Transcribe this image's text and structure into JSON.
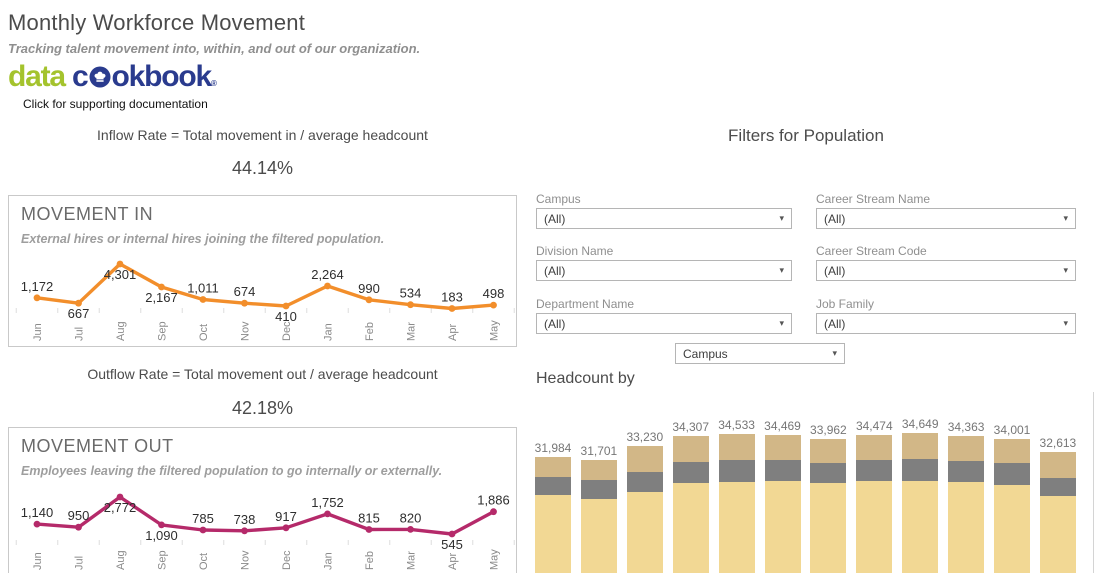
{
  "header": {
    "title": "Monthly Workforce Movement",
    "subtitle": "Tracking talent movement into, within, and out of our organization.",
    "logo": {
      "part1": "data",
      "part2_pre": "c",
      "part2_post": "okbook",
      "registered": "®",
      "caption": "Click for supporting documentation",
      "green": "#a4c32d",
      "blue": "#2a3b8e"
    }
  },
  "inflow": {
    "formula": "Inflow Rate = Total movement in / average headcount",
    "value": "44.14%"
  },
  "outflow": {
    "formula": "Outflow Rate = Total movement out / average headcount",
    "value": "42.18%"
  },
  "filters": {
    "title": "Filters for Population",
    "items": [
      {
        "label": "Campus",
        "value": "(All)"
      },
      {
        "label": "Career Stream Name",
        "value": "(All)"
      },
      {
        "label": "Division Name",
        "value": "(All)"
      },
      {
        "label": "Career Stream Code",
        "value": "(All)"
      },
      {
        "label": "Department Name",
        "value": "(All)"
      },
      {
        "label": "Job Family",
        "value": "(All)"
      }
    ],
    "parameter": {
      "value": "Campus"
    },
    "dropdown_arrow": "▾"
  },
  "headcount": {
    "title": "Headcount by"
  },
  "chart_data": [
    {
      "type": "line",
      "id": "movement_in",
      "title": "MOVEMENT IN",
      "subtitle": "External hires or internal hires joining the filtered population.",
      "categories": [
        "Jun",
        "Jul",
        "Aug",
        "Sep",
        "Oct",
        "Nov",
        "Dec",
        "Jan",
        "Feb",
        "Mar",
        "Apr",
        "May"
      ],
      "values": [
        1172,
        667,
        4301,
        2167,
        1011,
        674,
        410,
        2264,
        990,
        534,
        183,
        498
      ],
      "labels": [
        "1,172",
        "667",
        "4,301",
        "2,167",
        "1,011",
        "674",
        "410",
        "2,264",
        "990",
        "534",
        "183",
        "498"
      ],
      "color": "#f28e2b",
      "label_below": [
        1,
        2,
        3,
        6
      ],
      "legend": "none",
      "grid": false
    },
    {
      "type": "line",
      "id": "movement_out",
      "title": "MOVEMENT OUT",
      "subtitle": "Employees leaving the filtered population to go internally or externally.",
      "categories": [
        "Jun",
        "Jul",
        "Aug",
        "Sep",
        "Oct",
        "Nov",
        "Dec",
        "Jan",
        "Feb",
        "Mar",
        "Apr",
        "May"
      ],
      "values": [
        1140,
        950,
        2772,
        1090,
        785,
        738,
        917,
        1752,
        815,
        820,
        545,
        1886
      ],
      "labels": [
        "1,140",
        "950",
        "2,772",
        "1,090",
        "785",
        "738",
        "917",
        "1,752",
        "815",
        "820",
        "545",
        "1,886"
      ],
      "color": "#b52a6a",
      "label_below": [
        2,
        3,
        10
      ],
      "legend": "none",
      "grid": false
    },
    {
      "type": "bar",
      "id": "headcount_by",
      "title": "Headcount by Campus",
      "stacked": true,
      "values": [
        31984,
        31701,
        33230,
        34307,
        34533,
        34469,
        33962,
        34474,
        34649,
        34363,
        34001,
        32613
      ],
      "labels": [
        "31,984",
        "31,701",
        "33,230",
        "34,307",
        "34,533",
        "34,469",
        "33,962",
        "34,474",
        "34,649",
        "34,363",
        "34,001",
        "32,613"
      ],
      "segments_estimated": {
        "top": [
          2180,
          2180,
          2840,
          2840,
          2840,
          2730,
          2620,
          2730,
          2840,
          2730,
          2620,
          2840
        ],
        "middle": [
          1970,
          2070,
          2180,
          2290,
          2400,
          2290,
          2180,
          2290,
          2400,
          2290,
          2400,
          1970
        ]
      },
      "colors": {
        "top": "#d2b787",
        "middle": "#7f7f7f",
        "bottom": "#f2d894"
      },
      "note": "bars cut off at bottom edge of screenshot; category axis not visible"
    }
  ]
}
